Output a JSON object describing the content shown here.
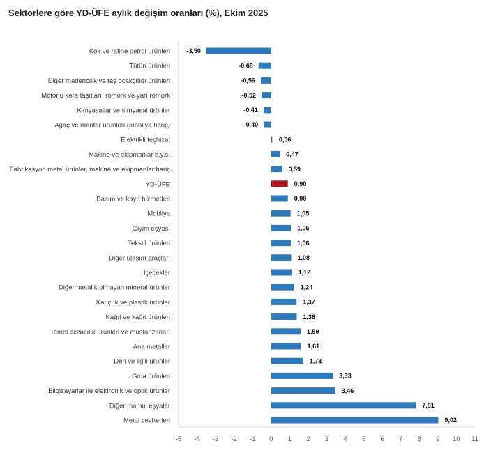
{
  "chart_data": {
    "type": "bar",
    "orientation": "horizontal",
    "title": "Sektörlere göre YD-ÜFE aylık değişim oranları (%), Ekim 2025",
    "xlabel": "",
    "ylabel": "",
    "xlim": [
      -5,
      11
    ],
    "xticks": [
      -5,
      -4,
      -3,
      -2,
      -1,
      0,
      1,
      2,
      3,
      4,
      5,
      6,
      7,
      8,
      9,
      10,
      11
    ],
    "grid": false,
    "legend": "none",
    "categories": [
      "Kok ve rafine petrol ürünleri",
      "Tütün ürünleri",
      "Diğer madencilik ve taş ocakçılığı ürünleri",
      "Motorlu kara taşıtları, römork ve yarı römork",
      "Kimyasallar ve kimyasal ürünler",
      "Ağaç ve mantar ürünleri (mobilya hariç)",
      "Elektrikli teçhizat",
      "Makine ve ekipmanlar b.y.s.",
      "Fabrikasyon metal ürünler, makine ve ekipmanlar hariç",
      "YD-ÜFE",
      "Basım ve kayıt hizmetleri",
      "Mobilya",
      "Giyim eşyası",
      "Tekstil ürünleri",
      "Diğer ulaşım araçları",
      "İçecekler",
      "Diğer metalik olmayan mineral ürünler",
      "Kauçuk ve plastik ürünler",
      "Kağıt ve kağıt ürünleri",
      "Temel eczacılık ürünleri ve müstahzarları",
      "Ana metaller",
      "Deri ve ilgili ürünler",
      "Gıda ürünleri",
      "Bilgisayarlar ile elektronik ve optik ürünler",
      "Diğer mamul eşyalar",
      "Metal cevherleri"
    ],
    "values": [
      -3.5,
      -0.68,
      -0.56,
      -0.52,
      -0.41,
      -0.4,
      0.06,
      0.47,
      0.59,
      0.9,
      0.9,
      1.05,
      1.06,
      1.06,
      1.08,
      1.12,
      1.24,
      1.37,
      1.38,
      1.59,
      1.61,
      1.73,
      3.33,
      3.46,
      7.81,
      9.02
    ],
    "value_labels": [
      "-3,50",
      "-0,68",
      "-0,56",
      "-0,52",
      "-0,41",
      "-0,40",
      "0,06",
      "0,47",
      "0,59",
      "0,90",
      "0,90",
      "1,05",
      "1,06",
      "1,06",
      "1,08",
      "1,12",
      "1,24",
      "1,37",
      "1,38",
      "1,59",
      "1,61",
      "1,73",
      "3,33",
      "3,46",
      "7,81",
      "9,02"
    ],
    "highlight_category": "YD-ÜFE",
    "colors": {
      "bar": "#2e7ab8",
      "highlight": "#a9161d",
      "axis": "#d9d9d9"
    }
  }
}
